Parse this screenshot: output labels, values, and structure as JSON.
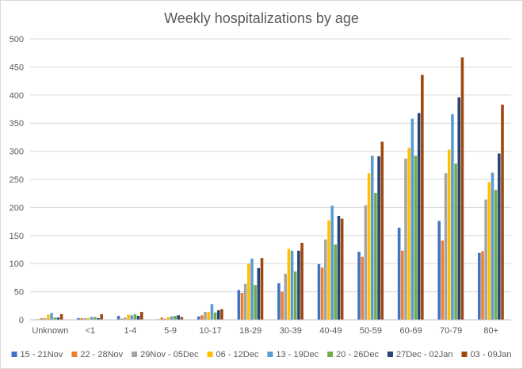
{
  "chart_data": {
    "type": "bar",
    "title": "Weekly hospitalizations by age",
    "xlabel": "",
    "ylabel": "",
    "ylim": [
      0,
      500
    ],
    "yticks": [
      0,
      50,
      100,
      150,
      200,
      250,
      300,
      350,
      400,
      450,
      500
    ],
    "grid": true,
    "legend_position": "bottom",
    "categories": [
      "Unknown",
      "<1",
      "1-4",
      "5-9",
      "10-17",
      "18-29",
      "30-39",
      "40-49",
      "50-59",
      "60-69",
      "70-79",
      "80+"
    ],
    "series": [
      {
        "name": "15 - 21Nov",
        "color": "#4472C4",
        "values": [
          1,
          3,
          7,
          1,
          6,
          53,
          65,
          99,
          121,
          164,
          176,
          119
        ]
      },
      {
        "name": "22 - 28Nov",
        "color": "#ED7D31",
        "values": [
          3,
          3,
          2,
          4,
          8,
          48,
          50,
          93,
          112,
          123,
          141,
          122
        ]
      },
      {
        "name": "29Nov - 05Dec",
        "color": "#A5A5A5",
        "values": [
          3,
          3,
          4,
          2,
          14,
          64,
          82,
          143,
          204,
          287,
          261,
          214
        ]
      },
      {
        "name": "06 - 12Dec",
        "color": "#FFC000",
        "values": [
          9,
          3,
          9,
          5,
          14,
          100,
          126,
          177,
          261,
          306,
          303,
          245
        ]
      },
      {
        "name": "13 - 19Dec",
        "color": "#5B9BD5",
        "values": [
          12,
          5,
          8,
          6,
          28,
          109,
          123,
          203,
          292,
          358,
          366,
          262
        ]
      },
      {
        "name": "20 - 26Dec",
        "color": "#70AD47",
        "values": [
          4,
          5,
          10,
          7,
          13,
          62,
          86,
          134,
          226,
          292,
          278,
          231
        ]
      },
      {
        "name": "27Dec - 02Jan",
        "color": "#264478",
        "values": [
          4,
          3,
          7,
          8,
          17,
          92,
          123,
          185,
          291,
          368,
          396,
          296
        ]
      },
      {
        "name": "03 - 09Jan",
        "color": "#9E480E",
        "values": [
          10,
          10,
          14,
          5,
          19,
          110,
          137,
          180,
          317,
          436,
          467,
          383
        ]
      }
    ]
  }
}
